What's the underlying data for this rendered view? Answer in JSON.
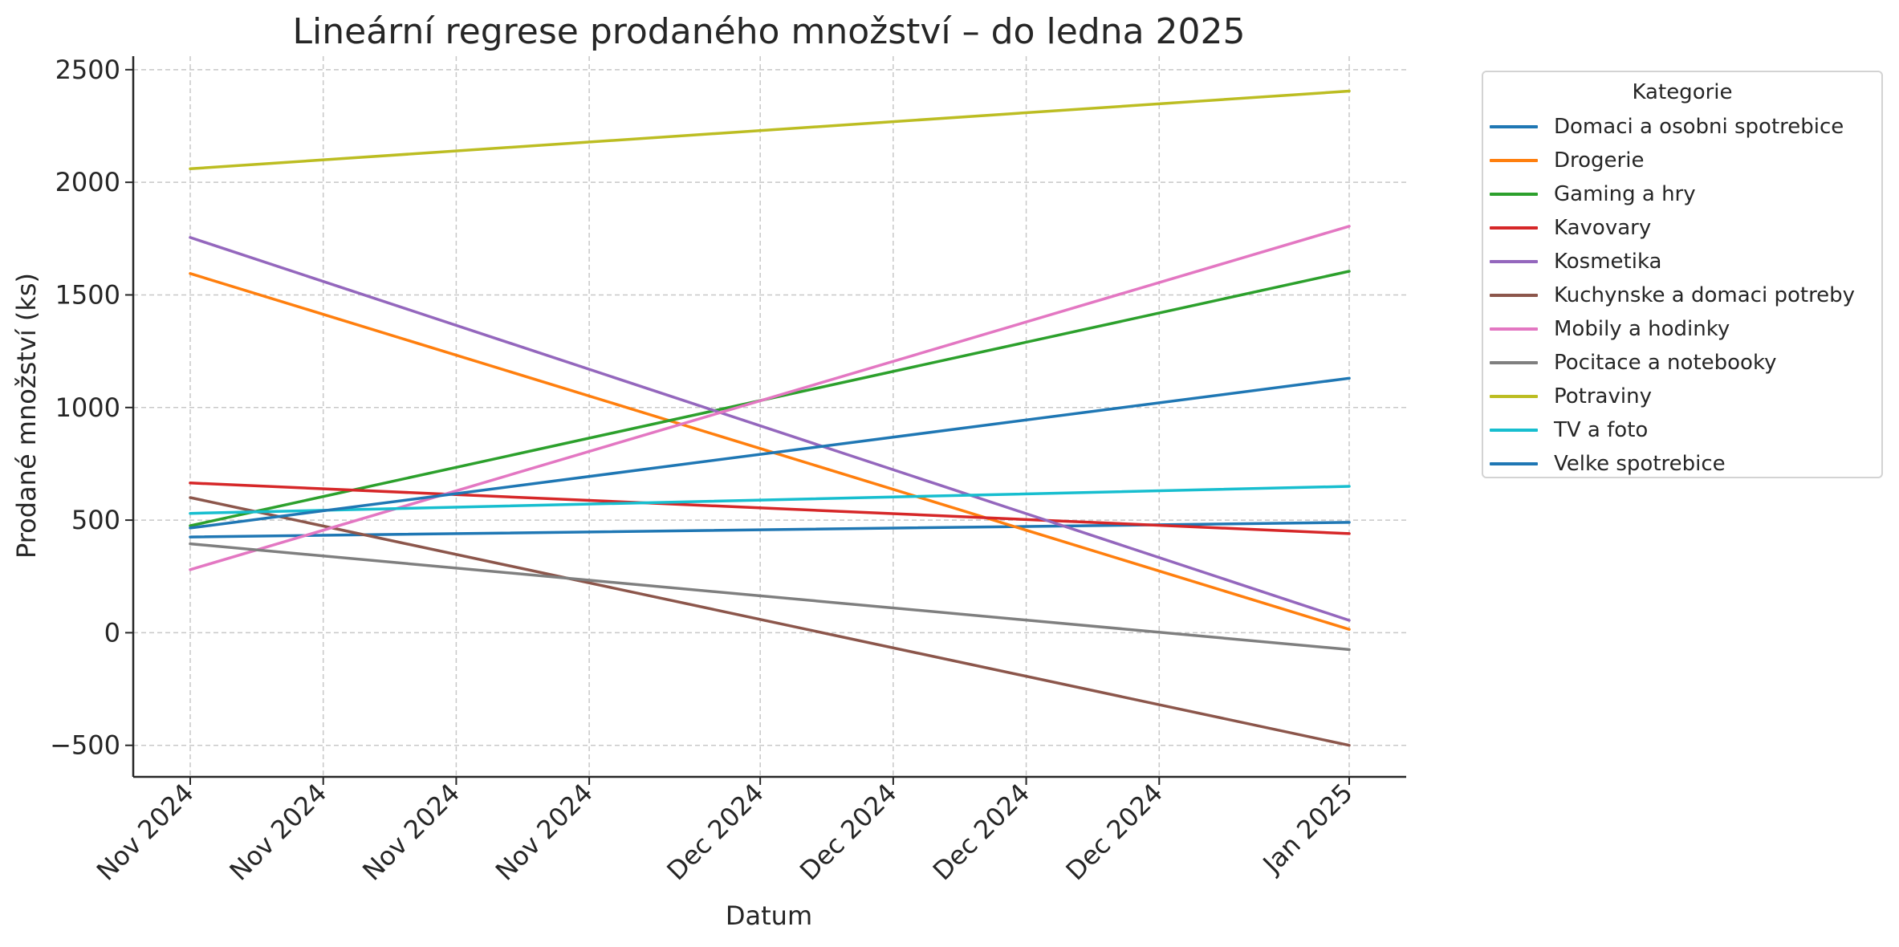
{
  "chart_data": {
    "type": "line",
    "title": "Lineární regrese prodaného množství – do ledna 2025",
    "xlabel": "Datum",
    "ylabel": "Prodané množství (ks)",
    "x_tick_labels": [
      "Nov 2024",
      "Nov 2024",
      "Nov 2024",
      "Nov 2024",
      "Dec 2024",
      "Dec 2024",
      "Dec 2024",
      "Dec 2024",
      "Jan 2025"
    ],
    "x_ticks": [
      "2024-11-01",
      "2024-11-08",
      "2024-11-15",
      "2024-11-22",
      "2024-12-01",
      "2024-12-08",
      "2024-12-15",
      "2024-12-22",
      "2025-01-01"
    ],
    "xlim": [
      "2024-10-29",
      "2025-01-04"
    ],
    "y_ticks": [
      -500,
      0,
      500,
      1000,
      1500,
      2000,
      2500
    ],
    "y_tick_labels": [
      "−500",
      "0",
      "500",
      "1000",
      "1500",
      "2000",
      "2500"
    ],
    "ylim": [
      -640,
      2560
    ],
    "grid": true,
    "legend_title": "Kategorie",
    "legend_position": "outside right, top",
    "series": [
      {
        "name": "Domaci a osobni spotrebice",
        "color": "#1f77b4",
        "x": [
          "2024-11-01",
          "2025-01-01"
        ],
        "y": [
          425,
          490
        ]
      },
      {
        "name": "Drogerie",
        "color": "#ff7f0e",
        "x": [
          "2024-11-01",
          "2025-01-01"
        ],
        "y": [
          1595,
          15
        ]
      },
      {
        "name": "Gaming a hry",
        "color": "#2ca02c",
        "x": [
          "2024-11-01",
          "2025-01-01"
        ],
        "y": [
          475,
          1605
        ]
      },
      {
        "name": "Kavovary",
        "color": "#d62728",
        "x": [
          "2024-11-01",
          "2025-01-01"
        ],
        "y": [
          665,
          440
        ]
      },
      {
        "name": "Kosmetika",
        "color": "#9467bd",
        "x": [
          "2024-11-01",
          "2025-01-01"
        ],
        "y": [
          1755,
          55
        ]
      },
      {
        "name": "Kuchynske a domaci potreby",
        "color": "#8c564b",
        "x": [
          "2024-11-01",
          "2025-01-01"
        ],
        "y": [
          600,
          -500
        ]
      },
      {
        "name": "Mobily a hodinky",
        "color": "#e377c2",
        "x": [
          "2024-11-01",
          "2025-01-01"
        ],
        "y": [
          280,
          1805
        ]
      },
      {
        "name": "Pocitace a notebooky",
        "color": "#7f7f7f",
        "x": [
          "2024-11-01",
          "2025-01-01"
        ],
        "y": [
          395,
          -75
        ]
      },
      {
        "name": "Potraviny",
        "color": "#bcbd22",
        "x": [
          "2024-11-01",
          "2025-01-01"
        ],
        "y": [
          2060,
          2405
        ]
      },
      {
        "name": "TV a foto",
        "color": "#17becf",
        "x": [
          "2024-11-01",
          "2025-01-01"
        ],
        "y": [
          530,
          650
        ]
      },
      {
        "name": "Velke spotrebice",
        "color": "#1f77b4",
        "x": [
          "2024-11-01",
          "2025-01-01"
        ],
        "y": [
          465,
          1130
        ]
      }
    ]
  }
}
